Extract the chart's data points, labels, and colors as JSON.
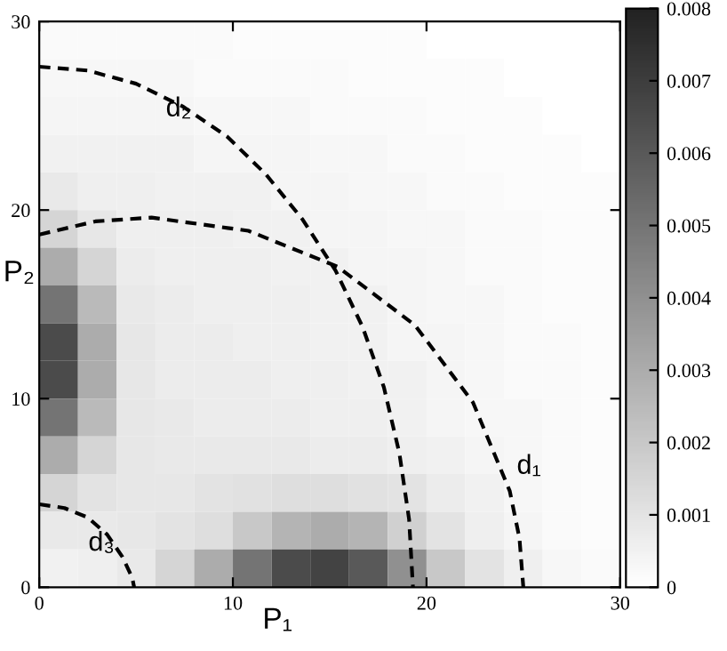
{
  "chart_data": {
    "type": "heatmap",
    "xlabel": "P₁",
    "ylabel": "P₂",
    "x": [
      1,
      3,
      5,
      7,
      9,
      11,
      13,
      15,
      17,
      19,
      21,
      23,
      25,
      27,
      29
    ],
    "cells": [
      [
        0.0002,
        0.0002,
        0.0002,
        0.0002,
        0.0002,
        0.0001,
        0.0001,
        0.0001,
        0.0001,
        0.0001,
        0,
        0,
        0,
        0,
        0
      ],
      [
        0.0003,
        0.0003,
        0.0003,
        0.0003,
        0.0002,
        0.0002,
        0.0002,
        0.0002,
        0.0001,
        0.0001,
        0.0001,
        0.0001,
        0,
        0,
        0
      ],
      [
        0.0004,
        0.0004,
        0.0004,
        0.0004,
        0.0003,
        0.0003,
        0.0003,
        0.0002,
        0.0002,
        0.0002,
        0.0001,
        0.0001,
        0.0001,
        0,
        0
      ],
      [
        0.0005,
        0.0005,
        0.0005,
        0.0005,
        0.0004,
        0.0004,
        0.0004,
        0.0003,
        0.0003,
        0.0002,
        0.0002,
        0.0001,
        0.0001,
        0.0001,
        0
      ],
      [
        0.0008,
        0.0006,
        0.0006,
        0.0005,
        0.0005,
        0.0005,
        0.0004,
        0.0004,
        0.0003,
        0.0003,
        0.0002,
        0.0002,
        0.0001,
        0.0001,
        0.0001
      ],
      [
        0.0015,
        0.0009,
        0.0006,
        0.0006,
        0.0006,
        0.0005,
        0.0005,
        0.0004,
        0.0004,
        0.0003,
        0.0003,
        0.0002,
        0.0002,
        0.0001,
        0.0001
      ],
      [
        0.003,
        0.0015,
        0.0007,
        0.0006,
        0.0006,
        0.0006,
        0.0005,
        0.0005,
        0.0004,
        0.0004,
        0.0003,
        0.0002,
        0.0002,
        0.0001,
        0.0001
      ],
      [
        0.005,
        0.0025,
        0.0008,
        0.0007,
        0.0006,
        0.0006,
        0.0006,
        0.0005,
        0.0005,
        0.0004,
        0.0003,
        0.0003,
        0.0002,
        0.0001,
        0.0001
      ],
      [
        0.0065,
        0.003,
        0.0009,
        0.0007,
        0.0007,
        0.0006,
        0.0006,
        0.0005,
        0.0005,
        0.0004,
        0.0004,
        0.0003,
        0.0002,
        0.0002,
        0.0001
      ],
      [
        0.0065,
        0.003,
        0.0009,
        0.0007,
        0.0007,
        0.0007,
        0.0006,
        0.0006,
        0.0005,
        0.0005,
        0.0004,
        0.0003,
        0.0002,
        0.0002,
        0.0001
      ],
      [
        0.005,
        0.0025,
        0.0009,
        0.0008,
        0.0007,
        0.0007,
        0.0007,
        0.0006,
        0.0006,
        0.0005,
        0.0004,
        0.0003,
        0.0003,
        0.0002,
        0.0001
      ],
      [
        0.003,
        0.0015,
        0.0009,
        0.0008,
        0.0008,
        0.0008,
        0.0008,
        0.0007,
        0.0007,
        0.0006,
        0.0005,
        0.0004,
        0.0003,
        0.0002,
        0.0001
      ],
      [
        0.0015,
        0.001,
        0.0009,
        0.0009,
        0.001,
        0.0011,
        0.0012,
        0.0012,
        0.0011,
        0.001,
        0.0007,
        0.0005,
        0.0003,
        0.0002,
        0.0001
      ],
      [
        0.0008,
        0.0008,
        0.0009,
        0.001,
        0.0012,
        0.002,
        0.0027,
        0.003,
        0.0027,
        0.0017,
        0.001,
        0.0006,
        0.0004,
        0.0002,
        0.0001
      ],
      [
        0.0005,
        0.0006,
        0.0008,
        0.0015,
        0.003,
        0.005,
        0.0065,
        0.0068,
        0.006,
        0.004,
        0.002,
        0.001,
        0.0006,
        0.0003,
        0.0002
      ]
    ],
    "xlim": [
      0,
      30
    ],
    "ylim": [
      0,
      30
    ],
    "xticks": [
      0,
      10,
      20,
      30
    ],
    "yticks": [
      0,
      10,
      20,
      30
    ],
    "clim": [
      0,
      0.008
    ],
    "cticks": [
      0,
      0.001,
      0.002,
      0.003,
      0.004,
      0.005,
      0.006,
      0.007,
      0.008
    ],
    "series": [
      {
        "type": "line",
        "color": "#000000",
        "line_style": "dashed",
        "x": [
          0,
          2.5,
          5.0,
          7.4,
          9.7,
          11.7,
          13.6,
          15.3,
          16.7,
          17.8,
          18.6,
          19.1,
          19.3
        ],
        "values": [
          27.6,
          27.4,
          26.7,
          25.5,
          23.9,
          21.9,
          19.5,
          16.8,
          13.8,
          10.6,
          7.1,
          3.6,
          0
        ]
      },
      {
        "type": "line",
        "color": "#000000",
        "line_style": "dashed",
        "x": [
          0,
          2.9,
          5.8,
          10.8,
          15.4,
          19.4,
          22.4,
          24.3,
          24.8,
          25.0
        ],
        "values": [
          18.7,
          19.4,
          19.6,
          18.9,
          17.0,
          13.9,
          9.8,
          5.1,
          2.6,
          0
        ]
      },
      {
        "type": "line",
        "color": "#000000",
        "line_style": "dashed",
        "x": [
          0,
          1.3,
          2.5,
          3.5,
          4.3,
          4.8,
          4.9
        ],
        "values": [
          4.4,
          4.2,
          3.7,
          2.8,
          1.6,
          0.5,
          0
        ]
      }
    ],
    "annotations": [
      "d₂",
      "d₁",
      "d₃"
    ],
    "grid": false
  }
}
